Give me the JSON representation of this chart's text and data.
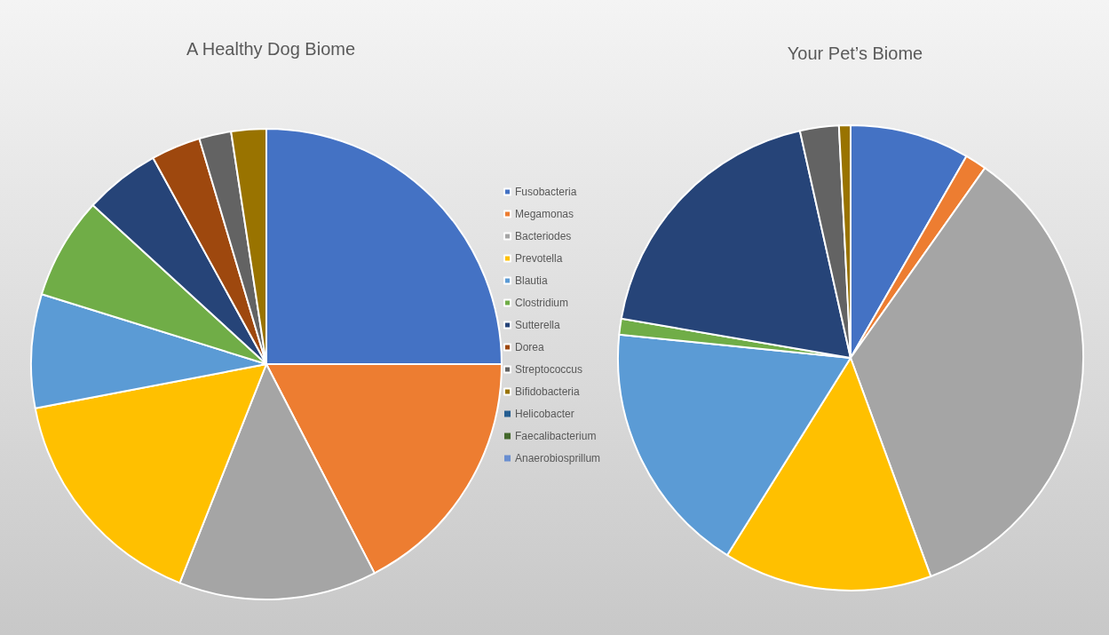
{
  "chart_data": {
    "type": "pie",
    "legend": "right",
    "categories": [
      "Fusobacteria",
      "Megamonas",
      "Bacteriodes",
      "Prevotella",
      "Blautia",
      "Clostridium",
      "Sutterella",
      "Dorea",
      "Streptococcus",
      "Bifidobacteria",
      "Helicobacter",
      "Faecalibacterium",
      "Anaerobiosprillum"
    ],
    "colors": [
      "#4472c4",
      "#ed7d31",
      "#a5a5a5",
      "#ffc000",
      "#5b9bd5",
      "#70ad47",
      "#264478",
      "#9e480e",
      "#636363",
      "#997300",
      "#255e91",
      "#43682b",
      "#698ed0"
    ],
    "series": [
      {
        "name": "A Healthy Dog Biome",
        "values": [
          25,
          17.4,
          13.6,
          16,
          7.8,
          7,
          5.2,
          3.4,
          2.2,
          2.4,
          0,
          0,
          0
        ]
      },
      {
        "name": "Your Pet’s Biome",
        "values": [
          8.3,
          1.5,
          34.6,
          14.5,
          17.7,
          1.1,
          18.8,
          0,
          2.7,
          0.8,
          0,
          0,
          0
        ]
      }
    ]
  }
}
